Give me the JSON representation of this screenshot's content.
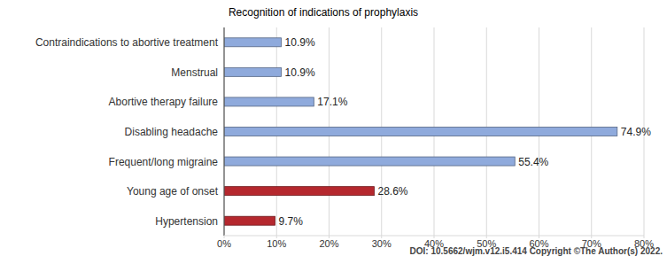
{
  "chart_data": {
    "type": "bar",
    "orientation": "horizontal",
    "title": "Recognition of indications of prophylaxis",
    "categories": [
      "Contraindications to abortive treatment",
      "Menstrual",
      "Abortive therapy failure",
      "Disabling headache",
      "Frequent/long migraine",
      "Young age of onset",
      "Hypertension"
    ],
    "values": [
      10.9,
      10.9,
      17.1,
      74.9,
      55.4,
      28.6,
      9.7
    ],
    "value_labels": [
      "10.9%",
      "10.9%",
      "17.1%",
      "74.9%",
      "55.4%",
      "28.6%",
      "9.7%"
    ],
    "colors": [
      "#8FAADC",
      "#8FAADC",
      "#8FAADC",
      "#8FAADC",
      "#8FAADC",
      "#B5282E",
      "#B5282E"
    ],
    "xlim": [
      0,
      80
    ],
    "xticks": [
      {
        "value": 0,
        "label": "0%"
      },
      {
        "value": 10,
        "label": "10%"
      },
      {
        "value": 20,
        "label": "20%"
      },
      {
        "value": 30,
        "label": "30%"
      },
      {
        "value": 40,
        "label": "40%"
      },
      {
        "value": 50,
        "label": "50%"
      },
      {
        "value": 60,
        "label": "60%"
      },
      {
        "value": 70,
        "label": "70%"
      },
      {
        "value": 80,
        "label": "80%"
      }
    ],
    "grid": true,
    "data_labels": true,
    "annotations": [
      "DOI: 10.5662/wjm.v12.i5.414 Copyright ©The Author(s) 2022."
    ]
  }
}
